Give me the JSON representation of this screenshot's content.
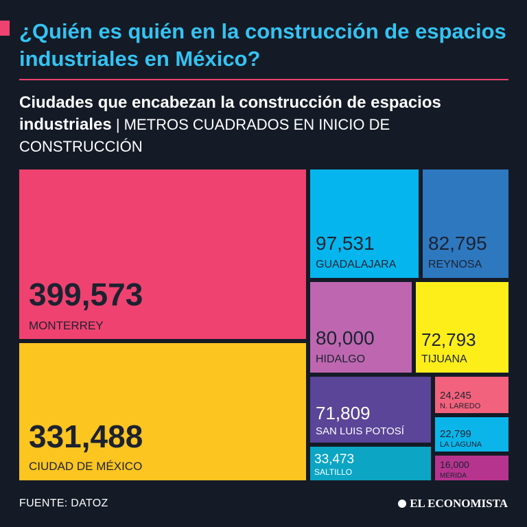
{
  "header": {
    "title": "¿Quién es quién en la construcción de espacios industriales en México?",
    "subtitle_bold": "Ciudades que encabezan la construcción de espacios industriales",
    "subtitle_sep": " | ",
    "subtitle_rest": "METROS CUADRADOS EN INICIO DE CONSTRUCCIÓN"
  },
  "chart_data": {
    "type": "treemap",
    "unit": "m²",
    "items": [
      {
        "city": "MONTERREY",
        "value": 399573,
        "label": "399,573",
        "color": "#ef4270"
      },
      {
        "city": "CIUDAD DE MÉXICO",
        "value": 331488,
        "label": "331,488",
        "color": "#fcc520"
      },
      {
        "city": "GUADALAJARA",
        "value": 97531,
        "label": "97,531",
        "color": "#05b6ee"
      },
      {
        "city": "REYNOSA",
        "value": 82795,
        "label": "82,795",
        "color": "#2e78c0"
      },
      {
        "city": "HIDALGO",
        "value": 80000,
        "label": "80,000",
        "color": "#be67b0"
      },
      {
        "city": "TIJUANA",
        "value": 72793,
        "label": "72,793",
        "color": "#fdee1a"
      },
      {
        "city": "SAN LUIS POTOSÍ",
        "value": 71809,
        "label": "71,809",
        "color": "#5a4598"
      },
      {
        "city": "SALTILLO",
        "value": 33473,
        "label": "33,473",
        "color": "#0ca5c4"
      },
      {
        "city": "N. LAREDO",
        "value": 24245,
        "label": "24,245",
        "color": "#f2627c"
      },
      {
        "city": "LA LAGUNA",
        "value": 22799,
        "label": "22,799",
        "color": "#0bb5e9"
      },
      {
        "city": "MÉRIDA",
        "value": 16000,
        "label": "16,000",
        "color": "#b6348e"
      }
    ]
  },
  "footer": {
    "source": "FUENTE: DATOZ",
    "brand": "EL ECONOMISTA"
  }
}
